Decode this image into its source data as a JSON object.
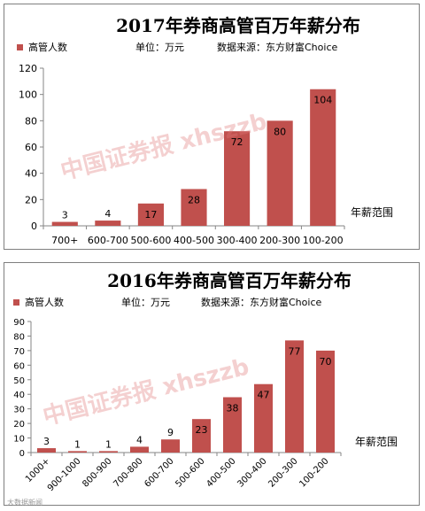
{
  "watermark": "中国证券报 xhszzb",
  "footer": "大数据新闻",
  "chart_data": [
    {
      "type": "bar",
      "title": "2017年券商高管百万年薪分布",
      "subtitle_unit": "单位：万元",
      "subtitle_source": "数据来源：东方财富Choice",
      "xlabel": "年薪范围",
      "ylabel": "",
      "ylim": [
        0,
        120
      ],
      "yticks": [
        0,
        20,
        40,
        60,
        80,
        100,
        120
      ],
      "categories": [
        "700+",
        "600-700",
        "500-600",
        "400-500",
        "300-400",
        "200-300",
        "100-200"
      ],
      "series": [
        {
          "name": "高管人数",
          "values": [
            3,
            4,
            17,
            28,
            72,
            80,
            104
          ]
        }
      ],
      "bar_color": "#c0504d",
      "grid": false,
      "legend": "top-left"
    },
    {
      "type": "bar",
      "title": "2016年券商高管百万年薪分布",
      "subtitle_unit": "单位：万元",
      "subtitle_source": "数据来源：东方财富Choice",
      "xlabel": "年薪范围",
      "ylabel": "",
      "ylim": [
        0,
        90
      ],
      "yticks": [
        0,
        10,
        20,
        30,
        40,
        50,
        60,
        70,
        80,
        90
      ],
      "categories": [
        "1000+",
        "900-1000",
        "800-900",
        "700-800",
        "600-700",
        "500-600",
        "400-500",
        "300-400",
        "200-300",
        "100-200"
      ],
      "series": [
        {
          "name": "高管人数",
          "values": [
            3,
            1,
            1,
            4,
            9,
            23,
            38,
            47,
            77,
            70
          ]
        }
      ],
      "bar_color": "#c0504d",
      "grid": false,
      "legend": "top-left"
    }
  ]
}
